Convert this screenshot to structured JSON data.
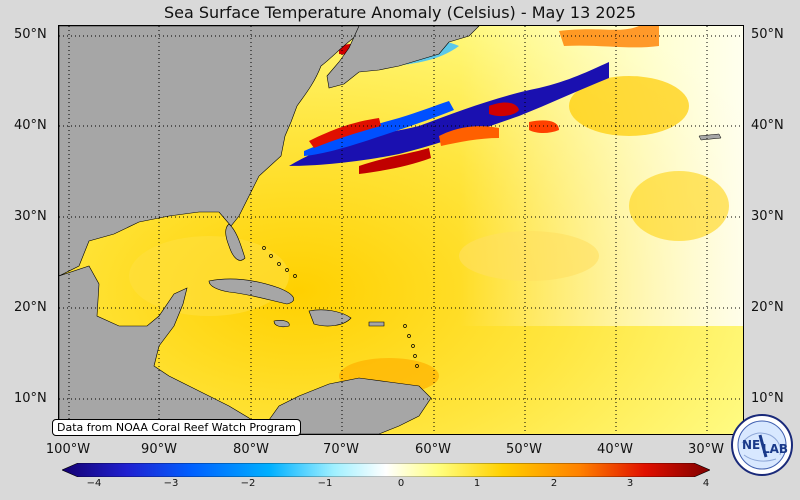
{
  "title": "Sea Surface Temperature Anomaly (Celsius) - May 13 2025",
  "attribution": "Data from NOAA Coral Reef Watch Program",
  "lat_labels": [
    "50°N",
    "40°N",
    "30°N",
    "20°N",
    "10°N"
  ],
  "lon_labels": [
    "100°W",
    "90°W",
    "80°W",
    "70°W",
    "60°W",
    "50°W",
    "40°W",
    "30°W"
  ],
  "colorbar": {
    "min": -4,
    "max": 4,
    "ticks": [
      "−4",
      "−3",
      "−2",
      "−1",
      "0",
      "1",
      "2",
      "3",
      "4"
    ],
    "colors": [
      "#140070",
      "#2020d0",
      "#0060ff",
      "#00b0ff",
      "#a0f0ff",
      "#ffffff",
      "#ffff80",
      "#ffd000",
      "#ff8000",
      "#e01000",
      "#800000"
    ]
  },
  "logo": {
    "text_1": "NE",
    "text_2": "LAB",
    "icon": "nexlab-globe-logo"
  },
  "colors": {
    "land": "#a6a6a6",
    "ocean_warm": "#ffd200",
    "background": "#d9d9d9"
  }
}
